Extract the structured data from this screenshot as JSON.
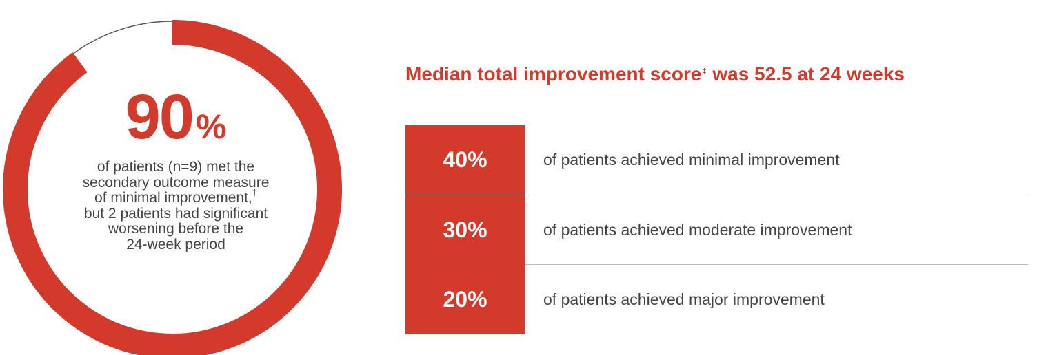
{
  "colors": {
    "accent": "#d33a2c",
    "text": "#444444",
    "track": "#555555"
  },
  "donut": {
    "big_number": "90",
    "big_unit": "%",
    "value_percent": 90,
    "description_lines": [
      "of patients (n=9) met the",
      "secondary outcome measure",
      "of minimal improvement,",
      "but 2 patients had significant",
      "worsening before the",
      "24-week period"
    ],
    "footnote_mark": "†"
  },
  "headline": {
    "text_before": "Median total improvement score",
    "footnote_mark": "‡",
    "text_after": " was 52.5 at 24 weeks"
  },
  "chart_data": {
    "type": "table",
    "categories": [
      "of patients achieved minimal improvement",
      "of patients achieved moderate improvement",
      "of patients achieved major improvement"
    ],
    "values": [
      40,
      30,
      20
    ],
    "value_labels": [
      "40%",
      "30%",
      "20%"
    ]
  }
}
